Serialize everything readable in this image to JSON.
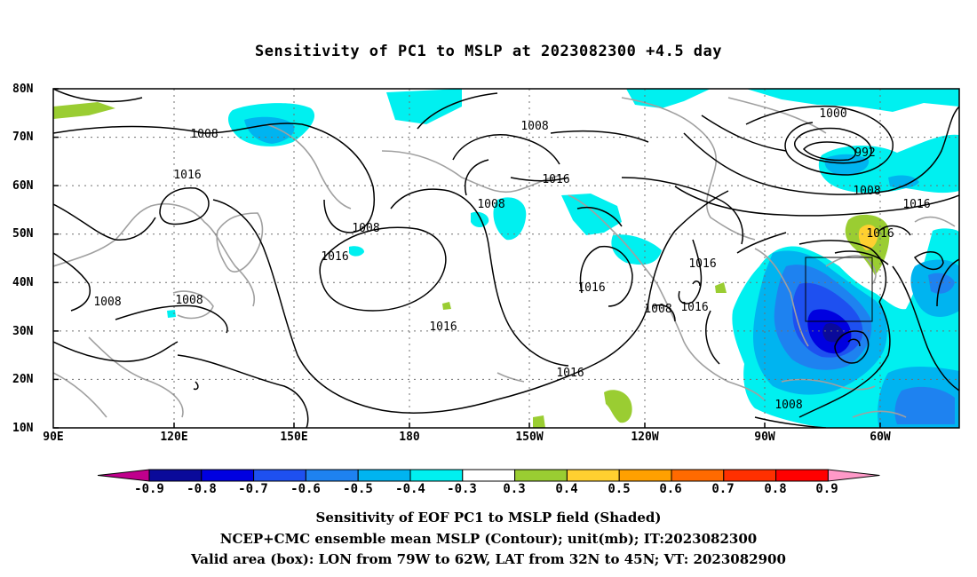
{
  "title": "Sensitivity of PC1 to MSLP at 2023082300 +4.5 day",
  "lat_labels": [
    "80N",
    "70N",
    "60N",
    "50N",
    "40N",
    "30N",
    "20N",
    "10N"
  ],
  "lon_labels": [
    "90E",
    "120E",
    "150E",
    "180",
    "150W",
    "120W",
    "90W",
    "60W"
  ],
  "contour_labels": {
    "c1008_nw": "1008",
    "c1008_w2": "1008",
    "c1008_w3": "1008",
    "c1008_w4": "1008",
    "c1016_w": "1016",
    "c1016_pac1": "1016",
    "c1016_pac2": "1016",
    "c1016_pac3": "1016",
    "c1008_n": "1008",
    "c1016_n": "1016",
    "c1008_np": "1008",
    "c1016_e1": "1016",
    "c1016_e2": "1016",
    "c1016_e3": "1016",
    "c1016_e4": "1016",
    "c1016_ne": "1016",
    "c1000": "1000",
    "c992": "992",
    "c1008_ne": "1008",
    "c1008_car": "1008",
    "c1016_lab": "1016",
    "c1008_low": "1008"
  },
  "colorbar": {
    "labels": [
      "-0.9",
      "-0.8",
      "-0.7",
      "-0.6",
      "-0.5",
      "-0.4",
      "-0.3",
      "0.3",
      "0.4",
      "0.5",
      "0.6",
      "0.7",
      "0.8",
      "0.9"
    ],
    "colors": [
      "#0a0a9a",
      "#0000e0",
      "#1e50f0",
      "#1e82f0",
      "#00b4f0",
      "#00f0f0",
      "#ffffff",
      "#9acd32",
      "#ffd030",
      "#ffa000",
      "#ff6a00",
      "#ff3000",
      "#ff0000"
    ],
    "low_end_color": "#c0008c",
    "high_end_color": "#ff99c8"
  },
  "captions": [
    "Sensitivity of EOF PC1 to MSLP field (Shaded)",
    "NCEP+CMC ensemble mean MSLP (Contour); unit(mb); IT:2023082300",
    "Valid area (box): LON from 79W to 62W, LAT from 32N to 45N; VT: 2023082900"
  ],
  "map_data": {
    "lon_range": [
      "90E",
      "50W"
    ],
    "lat_range": [
      "10N",
      "80N"
    ],
    "valid_box": {
      "lon": [
        "79W",
        "62W"
      ],
      "lat": [
        "32N",
        "45N"
      ]
    },
    "contour_unit": "mb",
    "contour_levels": [
      992,
      1000,
      1008,
      1016
    ]
  }
}
